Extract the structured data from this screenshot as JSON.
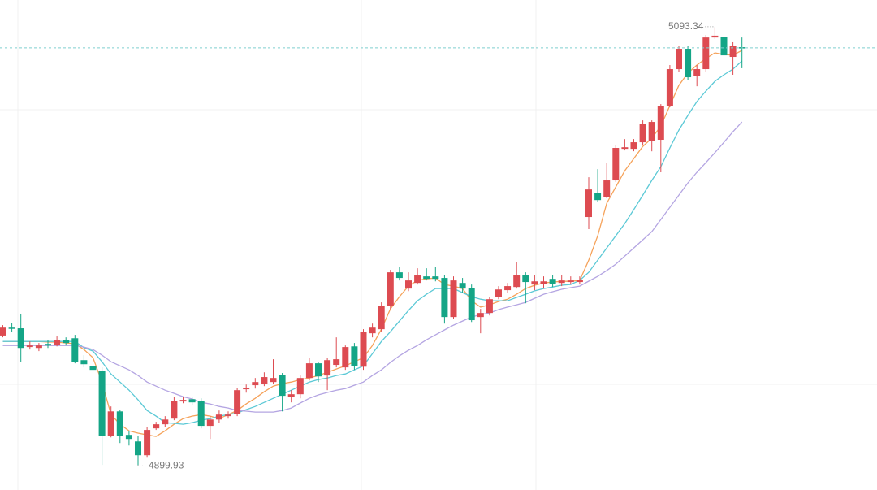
{
  "chart_data": {
    "type": "candlestick",
    "open": [
      4957.3,
      4960.8,
      4960.5,
      4952.2,
      4951.8,
      4953.6,
      4953.3,
      4955.4,
      4956.1,
      4946.4,
      4943.9,
      4941.7,
      4912.9,
      4923.7,
      4913.3,
      4910.4,
      4904.3,
      4916.2,
      4918.0,
      4920.5,
      4928.1,
      4929.1,
      4928.4,
      4917.3,
      4920.1,
      4921.6,
      4922.7,
      4933.5,
      4935.3,
      4936.0,
      4936.7,
      4939.9,
      4930.2,
      4931.3,
      4938.5,
      4945.0,
      4939.6,
      4944.3,
      4943.2,
      4952.5,
      4943.5,
      4958.3,
      4960.1,
      4970.5,
      4985.3,
      4978.1,
      4980.6,
      4983.5,
      4983.5,
      4982.8,
      4965.5,
      4980.6,
      4978.5,
      4965.5,
      4967.3,
      4974.5,
      4977.4,
      4978.8,
      4983.9,
      4979.9,
      4980.3,
      4982.4,
      4980.6,
      4981.0,
      4981.0,
      5009.8,
      5020.6,
      5018.8,
      5026.0,
      5040.0,
      5040.0,
      5042.9,
      5043.6,
      5044.0,
      5059.1,
      5075.3,
      5084.3,
      5072.4,
      5075.3,
      5089.3,
      5089.7,
      5080.7,
      5085.0
    ],
    "high": [
      4961.9,
      4963.0,
      4967.0,
      4954.7,
      4954.0,
      4955.4,
      4956.9,
      4956.5,
      4957.6,
      4948.6,
      4947.5,
      4943.2,
      4925.9,
      4924.5,
      4915.1,
      4912.9,
      4916.9,
      4919.1,
      4921.6,
      4930.2,
      4930.2,
      4930.2,
      4929.5,
      4921.6,
      4924.1,
      4923.7,
      4934.2,
      4935.6,
      4938.5,
      4941.0,
      4946.8,
      4940.7,
      4933.1,
      4939.6,
      4947.5,
      4945.7,
      4947.5,
      4956.5,
      4952.9,
      4954.0,
      4960.1,
      4962.6,
      4972.0,
      4986.4,
      4987.8,
      4985.3,
      4987.1,
      4987.1,
      4987.8,
      4984.2,
      4983.5,
      4982.8,
      4979.9,
      4969.1,
      4974.5,
      4979.2,
      4980.6,
      4990.0,
      4985.3,
      4984.2,
      4983.5,
      4984.2,
      4984.2,
      4983.5,
      4983.5,
      5027.4,
      5031.0,
      5033.9,
      5041.8,
      5044.3,
      5044.3,
      5052.6,
      5052.6,
      5059.8,
      5077.1,
      5085.4,
      5085.4,
      5077.1,
      5090.4,
      5093.34,
      5090.4,
      5087.2,
      5089.3
    ],
    "low": [
      4956.5,
      4959.0,
      4945.7,
      4951.1,
      4950.4,
      4951.8,
      4952.5,
      4952.9,
      4945.0,
      4943.2,
      4941.0,
      4900.0,
      4912.2,
      4909.7,
      4908.6,
      4899.93,
      4903.2,
      4915.5,
      4916.9,
      4919.8,
      4927.3,
      4926.6,
      4916.2,
      4911.5,
      4918.7,
      4920.5,
      4921.6,
      4932.0,
      4933.8,
      4934.9,
      4936.0,
      4923.7,
      4927.7,
      4929.5,
      4937.4,
      4936.7,
      4933.1,
      4943.2,
      4942.1,
      4942.1,
      4942.1,
      4956.5,
      4959.0,
      4969.1,
      4981.7,
      4977.0,
      4979.9,
      4981.7,
      4981.3,
      4962.6,
      4964.8,
      4976.3,
      4963.3,
      4958.3,
      4966.2,
      4973.4,
      4976.3,
      4978.1,
      4971.6,
      4977.4,
      4978.1,
      4978.8,
      4979.2,
      4979.9,
      4979.9,
      5004.4,
      5016.6,
      5018.1,
      5025.3,
      5039.3,
      5038.9,
      5041.8,
      5038.9,
      5029.6,
      5058.4,
      5074.2,
      5070.6,
      5067.7,
      5074.2,
      5088.6,
      5080.7,
      5072.8,
      5075.7
    ],
    "close": [
      4960.8,
      4960.5,
      4951.8,
      4952.9,
      4952.9,
      4952.9,
      4955.4,
      4954.0,
      4945.7,
      4944.6,
      4942.1,
      4912.9,
      4923.7,
      4912.9,
      4911.5,
      4904.3,
      4915.5,
      4918.0,
      4920.1,
      4928.4,
      4928.8,
      4927.7,
      4917.3,
      4920.1,
      4922.3,
      4922.3,
      4933.1,
      4934.2,
      4936.7,
      4938.9,
      4938.5,
      4930.6,
      4931.3,
      4938.5,
      4945.0,
      4939.2,
      4946.4,
      4946.8,
      4952.2,
      4943.9,
      4959.0,
      4960.8,
      4970.5,
      4985.3,
      4982.8,
      4981.7,
      4983.9,
      4982.4,
      4982.4,
      4965.5,
      4981.7,
      4978.1,
      4964.1,
      4967.3,
      4973.4,
      4977.7,
      4979.2,
      4983.9,
      4981.0,
      4981.3,
      4981.3,
      4980.3,
      4981.7,
      4981.7,
      4982.1,
      5022.0,
      5017.3,
      5026.0,
      5040.4,
      5040.7,
      5042.9,
      5051.2,
      5051.9,
      5059.1,
      5075.3,
      5084.3,
      5071.7,
      5075.3,
      5089.3,
      5090.1,
      5081.4,
      5085.4,
      5084.7
    ],
    "up_color": "#dd4b51",
    "down_color": "#14a586",
    "series": [
      {
        "color": "#f5a25a",
        "values": [
          4954.7,
          4954.7,
          4954.7,
          4954.7,
          4954.7,
          4954.4,
          4954.4,
          4954.0,
          4953.7,
          4951.1,
          4947.5,
          4936.7,
          4922.3,
          4918.0,
          4915.1,
          4914.1,
          4913.3,
          4912.6,
          4915.1,
          4918.0,
          4920.5,
          4921.6,
          4922.3,
          4921.6,
          4920.5,
          4922.3,
          4924.1,
          4927.0,
          4929.5,
          4932.4,
          4934.9,
          4936.0,
          4936.7,
          4937.8,
          4938.5,
          4939.6,
          4941.0,
          4942.5,
          4943.9,
          4945.7,
          4947.5,
          4952.9,
          4960.1,
          4969.1,
          4974.5,
          4979.2,
          4981.7,
          4982.4,
          4982.8,
          4979.9,
          4979.2,
          4978.1,
          4972.7,
          4969.9,
          4970.9,
          4972.4,
          4973.4,
          4975.6,
          4978.1,
          4979.6,
          4980.6,
          4981.0,
          4981.3,
          4981.3,
          4981.7,
          4990.7,
          5001.5,
          5015.9,
          5023.1,
          5030.3,
          5035.7,
          5041.1,
          5044.7,
          5050.1,
          5059.1,
          5068.1,
          5073.5,
          5077.1,
          5080.0,
          5082.5,
          5081.8,
          5081.5,
          5083.6
        ]
      },
      {
        "color": "#5cc9d6",
        "values": [
          4954.7,
          4954.7,
          4954.7,
          4954.7,
          4954.7,
          4954.7,
          4954.7,
          4954.7,
          4954.7,
          4951.9,
          4950.4,
          4945.7,
          4940.3,
          4936.7,
          4933.1,
          4928.8,
          4924.1,
          4921.6,
          4918.7,
          4918.4,
          4918.0,
          4918.7,
          4919.8,
          4920.5,
          4921.6,
          4922.3,
          4923.0,
          4924.5,
          4925.9,
          4927.7,
          4929.5,
          4931.3,
          4933.1,
          4934.9,
          4936.7,
          4937.8,
          4938.5,
          4939.6,
          4940.3,
          4942.1,
          4943.9,
          4949.3,
          4954.7,
          4959.0,
          4963.7,
          4968.4,
          4972.7,
          4975.6,
          4978.1,
          4978.1,
          4978.1,
          4976.3,
          4974.5,
          4973.4,
          4972.7,
          4972.7,
          4972.7,
          4974.2,
          4975.6,
          4977.1,
          4978.1,
          4978.8,
          4979.6,
          4979.9,
          4981.7,
          4985.3,
          4990.7,
          4996.1,
          5001.5,
          5006.9,
          5013.1,
          5019.5,
          5026.0,
          5032.1,
          5040.4,
          5048.3,
          5054.8,
          5060.9,
          5065.6,
          5069.9,
          5072.8,
          5075.3,
          5078.9
        ]
      },
      {
        "color": "#b4a5e2",
        "values": [
          4952.9,
          4952.9,
          4952.9,
          4952.9,
          4952.9,
          4952.9,
          4952.9,
          4952.9,
          4952.9,
          4952.2,
          4951.1,
          4948.6,
          4945.7,
          4943.9,
          4942.1,
          4939.6,
          4936.7,
          4934.9,
          4933.1,
          4931.7,
          4930.2,
          4929.2,
          4927.7,
          4927.0,
          4925.9,
          4925.2,
          4924.1,
          4923.8,
          4923.4,
          4923.4,
          4923.4,
          4924.1,
          4925.2,
          4927.4,
          4929.5,
          4931.0,
          4932.1,
          4933.1,
          4933.8,
          4935.3,
          4936.7,
          4939.6,
          4942.1,
          4945.4,
          4948.3,
          4950.8,
          4952.9,
          4955.4,
          4957.6,
          4959.8,
          4961.9,
          4963.7,
          4965.5,
          4966.6,
          4967.3,
          4968.8,
          4969.9,
          4970.9,
          4972.0,
          4973.8,
          4975.6,
          4976.7,
          4977.8,
          4978.5,
          4979.2,
          4981.4,
          4983.5,
          4986.1,
          4988.9,
          4992.5,
          4996.1,
          4999.7,
          5003.3,
          5008.7,
          5014.1,
          5019.5,
          5024.9,
          5029.6,
          5033.9,
          5038.3,
          5042.9,
          5047.6,
          5051.9
        ]
      }
    ],
    "ylim": [
      4888.9,
      5105.9
    ],
    "yticks": [
      4935.7,
      5057.3
    ],
    "grid": true
  }
}
